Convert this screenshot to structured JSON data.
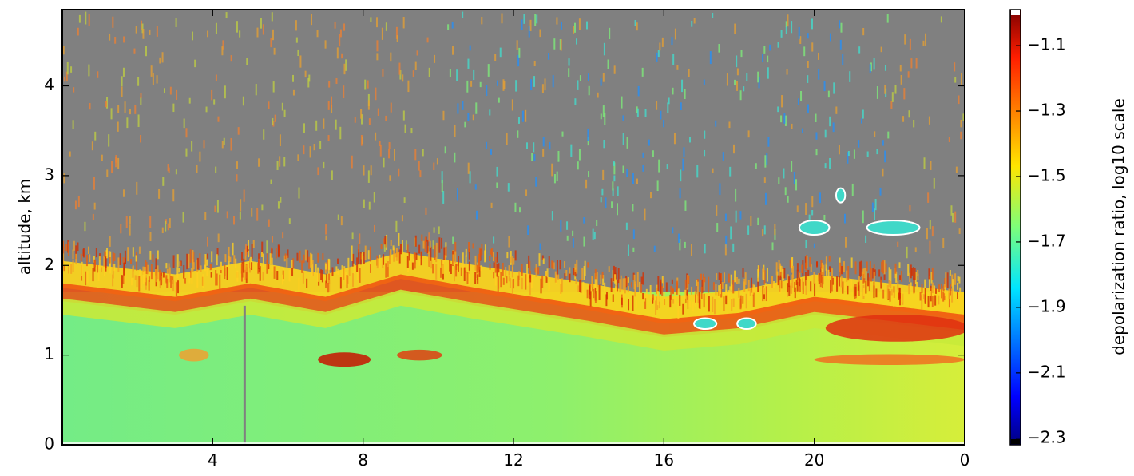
{
  "chart_data": {
    "type": "heatmap",
    "ylabel": "altitude, km",
    "colorbar_label": "depolarization ratio, log10 scale",
    "colormap": "jet",
    "xlim": [
      0,
      24
    ],
    "xticks": [
      4,
      8,
      12,
      16,
      20,
      {
        "value": 24,
        "label": "0"
      }
    ],
    "ylim": [
      0,
      4.85
    ],
    "yticks": [
      0,
      1,
      2,
      3,
      4
    ],
    "clim": [
      -2.32,
      -0.99
    ],
    "cticks": [
      {
        "value": -1.1,
        "label": "−1.1"
      },
      {
        "value": -1.3,
        "label": "−1.3"
      },
      {
        "value": -1.5,
        "label": "−1.5"
      },
      {
        "value": -1.7,
        "label": "−1.7"
      },
      {
        "value": -1.9,
        "label": "−1.9"
      },
      {
        "value": -2.1,
        "label": "−2.1"
      },
      {
        "value": -2.3,
        "label": "−2.3"
      }
    ]
  }
}
